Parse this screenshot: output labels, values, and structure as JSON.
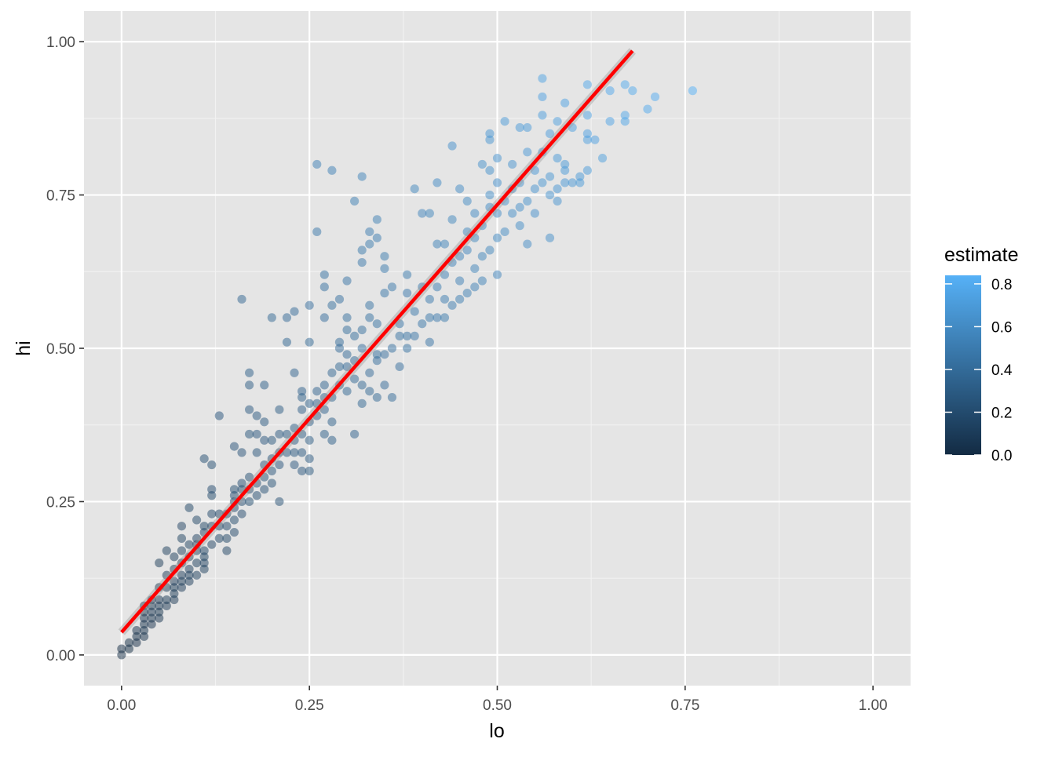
{
  "chart_data": {
    "type": "scatter",
    "title": "",
    "xlabel": "lo",
    "ylabel": "hi",
    "xlim": [
      -0.05,
      1.05
    ],
    "ylim": [
      -0.05,
      1.05
    ],
    "x_ticks": [
      0.0,
      0.25,
      0.5,
      0.75,
      1.0
    ],
    "x_tick_labels": [
      "0.00",
      "0.25",
      "0.50",
      "0.75",
      "1.00"
    ],
    "y_ticks": [
      0.0,
      0.25,
      0.5,
      0.75,
      1.0
    ],
    "y_tick_labels": [
      "0.00",
      "0.25",
      "0.50",
      "0.75",
      "1.00"
    ],
    "grid": true,
    "panel_background": "#E5E5E5",
    "legend": {
      "title": "estimate",
      "position": "right",
      "type": "colorbar",
      "range": [
        0.0,
        0.84
      ],
      "ticks": [
        0.0,
        0.2,
        0.4,
        0.6,
        0.8
      ],
      "tick_labels": [
        "0.0",
        "0.2",
        "0.4",
        "0.6",
        "0.8"
      ],
      "color_low": "#132B43",
      "color_high": "#56B1F7"
    },
    "point_alpha": 0.5,
    "series": [
      {
        "points": [
          [
            0.0,
            0.0
          ],
          [
            0.0,
            0.01
          ],
          [
            0.01,
            0.01
          ],
          [
            0.01,
            0.02
          ],
          [
            0.02,
            0.02
          ],
          [
            0.02,
            0.03
          ],
          [
            0.02,
            0.04
          ],
          [
            0.03,
            0.03
          ],
          [
            0.03,
            0.04
          ],
          [
            0.03,
            0.05
          ],
          [
            0.03,
            0.06
          ],
          [
            0.03,
            0.07
          ],
          [
            0.03,
            0.08
          ],
          [
            0.04,
            0.05
          ],
          [
            0.04,
            0.06
          ],
          [
            0.04,
            0.07
          ],
          [
            0.04,
            0.08
          ],
          [
            0.04,
            0.09
          ],
          [
            0.05,
            0.06
          ],
          [
            0.05,
            0.07
          ],
          [
            0.05,
            0.08
          ],
          [
            0.05,
            0.09
          ],
          [
            0.05,
            0.11
          ],
          [
            0.05,
            0.15
          ],
          [
            0.06,
            0.08
          ],
          [
            0.06,
            0.09
          ],
          [
            0.06,
            0.11
          ],
          [
            0.06,
            0.13
          ],
          [
            0.06,
            0.17
          ],
          [
            0.07,
            0.09
          ],
          [
            0.07,
            0.1
          ],
          [
            0.07,
            0.11
          ],
          [
            0.07,
            0.12
          ],
          [
            0.07,
            0.14
          ],
          [
            0.07,
            0.16
          ],
          [
            0.08,
            0.11
          ],
          [
            0.08,
            0.12
          ],
          [
            0.08,
            0.13
          ],
          [
            0.08,
            0.15
          ],
          [
            0.08,
            0.17
          ],
          [
            0.08,
            0.19
          ],
          [
            0.08,
            0.21
          ],
          [
            0.09,
            0.12
          ],
          [
            0.09,
            0.13
          ],
          [
            0.09,
            0.14
          ],
          [
            0.09,
            0.16
          ],
          [
            0.09,
            0.18
          ],
          [
            0.09,
            0.24
          ],
          [
            0.1,
            0.13
          ],
          [
            0.1,
            0.15
          ],
          [
            0.1,
            0.17
          ],
          [
            0.1,
            0.18
          ],
          [
            0.1,
            0.19
          ],
          [
            0.1,
            0.22
          ],
          [
            0.11,
            0.14
          ],
          [
            0.11,
            0.15
          ],
          [
            0.11,
            0.16
          ],
          [
            0.11,
            0.17
          ],
          [
            0.11,
            0.2
          ],
          [
            0.11,
            0.21
          ],
          [
            0.11,
            0.32
          ],
          [
            0.12,
            0.18
          ],
          [
            0.12,
            0.21
          ],
          [
            0.12,
            0.23
          ],
          [
            0.12,
            0.26
          ],
          [
            0.12,
            0.27
          ],
          [
            0.12,
            0.31
          ],
          [
            0.13,
            0.19
          ],
          [
            0.13,
            0.21
          ],
          [
            0.13,
            0.23
          ],
          [
            0.13,
            0.39
          ],
          [
            0.14,
            0.17
          ],
          [
            0.14,
            0.19
          ],
          [
            0.14,
            0.21
          ],
          [
            0.14,
            0.23
          ],
          [
            0.15,
            0.2
          ],
          [
            0.15,
            0.22
          ],
          [
            0.15,
            0.24
          ],
          [
            0.15,
            0.25
          ],
          [
            0.15,
            0.26
          ],
          [
            0.15,
            0.27
          ],
          [
            0.15,
            0.34
          ],
          [
            0.16,
            0.23
          ],
          [
            0.16,
            0.25
          ],
          [
            0.16,
            0.27
          ],
          [
            0.16,
            0.28
          ],
          [
            0.16,
            0.33
          ],
          [
            0.16,
            0.58
          ],
          [
            0.17,
            0.25
          ],
          [
            0.17,
            0.27
          ],
          [
            0.17,
            0.29
          ],
          [
            0.17,
            0.36
          ],
          [
            0.17,
            0.4
          ],
          [
            0.17,
            0.44
          ],
          [
            0.17,
            0.46
          ],
          [
            0.18,
            0.26
          ],
          [
            0.18,
            0.28
          ],
          [
            0.18,
            0.33
          ],
          [
            0.18,
            0.36
          ],
          [
            0.18,
            0.39
          ],
          [
            0.19,
            0.27
          ],
          [
            0.19,
            0.29
          ],
          [
            0.19,
            0.31
          ],
          [
            0.19,
            0.35
          ],
          [
            0.19,
            0.38
          ],
          [
            0.19,
            0.44
          ],
          [
            0.2,
            0.28
          ],
          [
            0.2,
            0.3
          ],
          [
            0.2,
            0.32
          ],
          [
            0.2,
            0.35
          ],
          [
            0.2,
            0.55
          ],
          [
            0.21,
            0.25
          ],
          [
            0.21,
            0.31
          ],
          [
            0.21,
            0.33
          ],
          [
            0.21,
            0.36
          ],
          [
            0.21,
            0.4
          ],
          [
            0.22,
            0.33
          ],
          [
            0.22,
            0.36
          ],
          [
            0.22,
            0.51
          ],
          [
            0.22,
            0.55
          ],
          [
            0.23,
            0.31
          ],
          [
            0.23,
            0.33
          ],
          [
            0.23,
            0.35
          ],
          [
            0.23,
            0.37
          ],
          [
            0.23,
            0.46
          ],
          [
            0.23,
            0.56
          ],
          [
            0.24,
            0.3
          ],
          [
            0.24,
            0.33
          ],
          [
            0.24,
            0.36
          ],
          [
            0.24,
            0.4
          ],
          [
            0.24,
            0.42
          ],
          [
            0.24,
            0.43
          ],
          [
            0.25,
            0.3
          ],
          [
            0.25,
            0.32
          ],
          [
            0.25,
            0.35
          ],
          [
            0.25,
            0.38
          ],
          [
            0.25,
            0.41
          ],
          [
            0.25,
            0.51
          ],
          [
            0.25,
            0.57
          ],
          [
            0.26,
            0.39
          ],
          [
            0.26,
            0.41
          ],
          [
            0.26,
            0.43
          ],
          [
            0.26,
            0.69
          ],
          [
            0.26,
            0.8
          ],
          [
            0.27,
            0.36
          ],
          [
            0.27,
            0.4
          ],
          [
            0.27,
            0.42
          ],
          [
            0.27,
            0.44
          ],
          [
            0.27,
            0.55
          ],
          [
            0.27,
            0.6
          ],
          [
            0.27,
            0.62
          ],
          [
            0.28,
            0.35
          ],
          [
            0.28,
            0.38
          ],
          [
            0.28,
            0.42
          ],
          [
            0.28,
            0.46
          ],
          [
            0.28,
            0.57
          ],
          [
            0.28,
            0.79
          ],
          [
            0.29,
            0.44
          ],
          [
            0.29,
            0.47
          ],
          [
            0.29,
            0.5
          ],
          [
            0.29,
            0.51
          ],
          [
            0.29,
            0.58
          ],
          [
            0.3,
            0.43
          ],
          [
            0.3,
            0.47
          ],
          [
            0.3,
            0.49
          ],
          [
            0.3,
            0.53
          ],
          [
            0.3,
            0.55
          ],
          [
            0.3,
            0.61
          ],
          [
            0.31,
            0.36
          ],
          [
            0.31,
            0.45
          ],
          [
            0.31,
            0.48
          ],
          [
            0.31,
            0.52
          ],
          [
            0.31,
            0.74
          ],
          [
            0.32,
            0.41
          ],
          [
            0.32,
            0.44
          ],
          [
            0.32,
            0.5
          ],
          [
            0.32,
            0.53
          ],
          [
            0.32,
            0.64
          ],
          [
            0.32,
            0.66
          ],
          [
            0.32,
            0.78
          ],
          [
            0.33,
            0.43
          ],
          [
            0.33,
            0.46
          ],
          [
            0.33,
            0.55
          ],
          [
            0.33,
            0.57
          ],
          [
            0.33,
            0.67
          ],
          [
            0.33,
            0.69
          ],
          [
            0.34,
            0.42
          ],
          [
            0.34,
            0.48
          ],
          [
            0.34,
            0.49
          ],
          [
            0.34,
            0.54
          ],
          [
            0.34,
            0.68
          ],
          [
            0.34,
            0.71
          ],
          [
            0.35,
            0.44
          ],
          [
            0.35,
            0.49
          ],
          [
            0.35,
            0.59
          ],
          [
            0.35,
            0.63
          ],
          [
            0.35,
            0.65
          ],
          [
            0.36,
            0.42
          ],
          [
            0.36,
            0.5
          ],
          [
            0.36,
            0.6
          ],
          [
            0.37,
            0.47
          ],
          [
            0.37,
            0.54
          ],
          [
            0.37,
            0.52
          ],
          [
            0.38,
            0.5
          ],
          [
            0.38,
            0.52
          ],
          [
            0.38,
            0.59
          ],
          [
            0.38,
            0.62
          ],
          [
            0.39,
            0.52
          ],
          [
            0.39,
            0.56
          ],
          [
            0.39,
            0.76
          ],
          [
            0.4,
            0.54
          ],
          [
            0.4,
            0.6
          ],
          [
            0.4,
            0.72
          ],
          [
            0.41,
            0.51
          ],
          [
            0.41,
            0.55
          ],
          [
            0.41,
            0.58
          ],
          [
            0.41,
            0.72
          ],
          [
            0.42,
            0.55
          ],
          [
            0.42,
            0.6
          ],
          [
            0.42,
            0.67
          ],
          [
            0.42,
            0.77
          ],
          [
            0.43,
            0.55
          ],
          [
            0.43,
            0.58
          ],
          [
            0.43,
            0.62
          ],
          [
            0.43,
            0.67
          ],
          [
            0.44,
            0.57
          ],
          [
            0.44,
            0.64
          ],
          [
            0.44,
            0.71
          ],
          [
            0.44,
            0.83
          ],
          [
            0.45,
            0.58
          ],
          [
            0.45,
            0.61
          ],
          [
            0.45,
            0.65
          ],
          [
            0.45,
            0.76
          ],
          [
            0.46,
            0.59
          ],
          [
            0.46,
            0.66
          ],
          [
            0.46,
            0.69
          ],
          [
            0.46,
            0.74
          ],
          [
            0.47,
            0.6
          ],
          [
            0.47,
            0.63
          ],
          [
            0.47,
            0.68
          ],
          [
            0.47,
            0.72
          ],
          [
            0.48,
            0.61
          ],
          [
            0.48,
            0.65
          ],
          [
            0.48,
            0.7
          ],
          [
            0.48,
            0.8
          ],
          [
            0.49,
            0.66
          ],
          [
            0.49,
            0.73
          ],
          [
            0.49,
            0.75
          ],
          [
            0.49,
            0.79
          ],
          [
            0.49,
            0.84
          ],
          [
            0.49,
            0.85
          ],
          [
            0.5,
            0.62
          ],
          [
            0.5,
            0.68
          ],
          [
            0.5,
            0.72
          ],
          [
            0.5,
            0.77
          ],
          [
            0.5,
            0.81
          ],
          [
            0.51,
            0.69
          ],
          [
            0.51,
            0.74
          ],
          [
            0.51,
            0.87
          ],
          [
            0.52,
            0.72
          ],
          [
            0.52,
            0.76
          ],
          [
            0.52,
            0.8
          ],
          [
            0.53,
            0.7
          ],
          [
            0.53,
            0.73
          ],
          [
            0.53,
            0.77
          ],
          [
            0.53,
            0.86
          ],
          [
            0.54,
            0.67
          ],
          [
            0.54,
            0.74
          ],
          [
            0.54,
            0.82
          ],
          [
            0.54,
            0.86
          ],
          [
            0.55,
            0.72
          ],
          [
            0.55,
            0.76
          ],
          [
            0.55,
            0.79
          ],
          [
            0.56,
            0.77
          ],
          [
            0.56,
            0.82
          ],
          [
            0.56,
            0.88
          ],
          [
            0.56,
            0.91
          ],
          [
            0.56,
            0.94
          ],
          [
            0.57,
            0.68
          ],
          [
            0.57,
            0.75
          ],
          [
            0.57,
            0.78
          ],
          [
            0.57,
            0.85
          ],
          [
            0.58,
            0.74
          ],
          [
            0.58,
            0.76
          ],
          [
            0.58,
            0.81
          ],
          [
            0.58,
            0.87
          ],
          [
            0.59,
            0.77
          ],
          [
            0.59,
            0.79
          ],
          [
            0.59,
            0.8
          ],
          [
            0.59,
            0.9
          ],
          [
            0.6,
            0.77
          ],
          [
            0.6,
            0.86
          ],
          [
            0.61,
            0.77
          ],
          [
            0.61,
            0.78
          ],
          [
            0.62,
            0.79
          ],
          [
            0.62,
            0.84
          ],
          [
            0.62,
            0.85
          ],
          [
            0.62,
            0.88
          ],
          [
            0.62,
            0.93
          ],
          [
            0.63,
            0.84
          ],
          [
            0.64,
            0.81
          ],
          [
            0.65,
            0.87
          ],
          [
            0.65,
            0.92
          ],
          [
            0.67,
            0.87
          ],
          [
            0.67,
            0.88
          ],
          [
            0.67,
            0.93
          ],
          [
            0.68,
            0.92
          ],
          [
            0.7,
            0.89
          ],
          [
            0.71,
            0.91
          ],
          [
            0.76,
            0.92
          ]
        ]
      }
    ],
    "smooth": {
      "color": "#FF0000",
      "band_color": "#999999",
      "x": [
        0.0,
        0.68
      ],
      "y": [
        0.037,
        0.985
      ]
    }
  }
}
